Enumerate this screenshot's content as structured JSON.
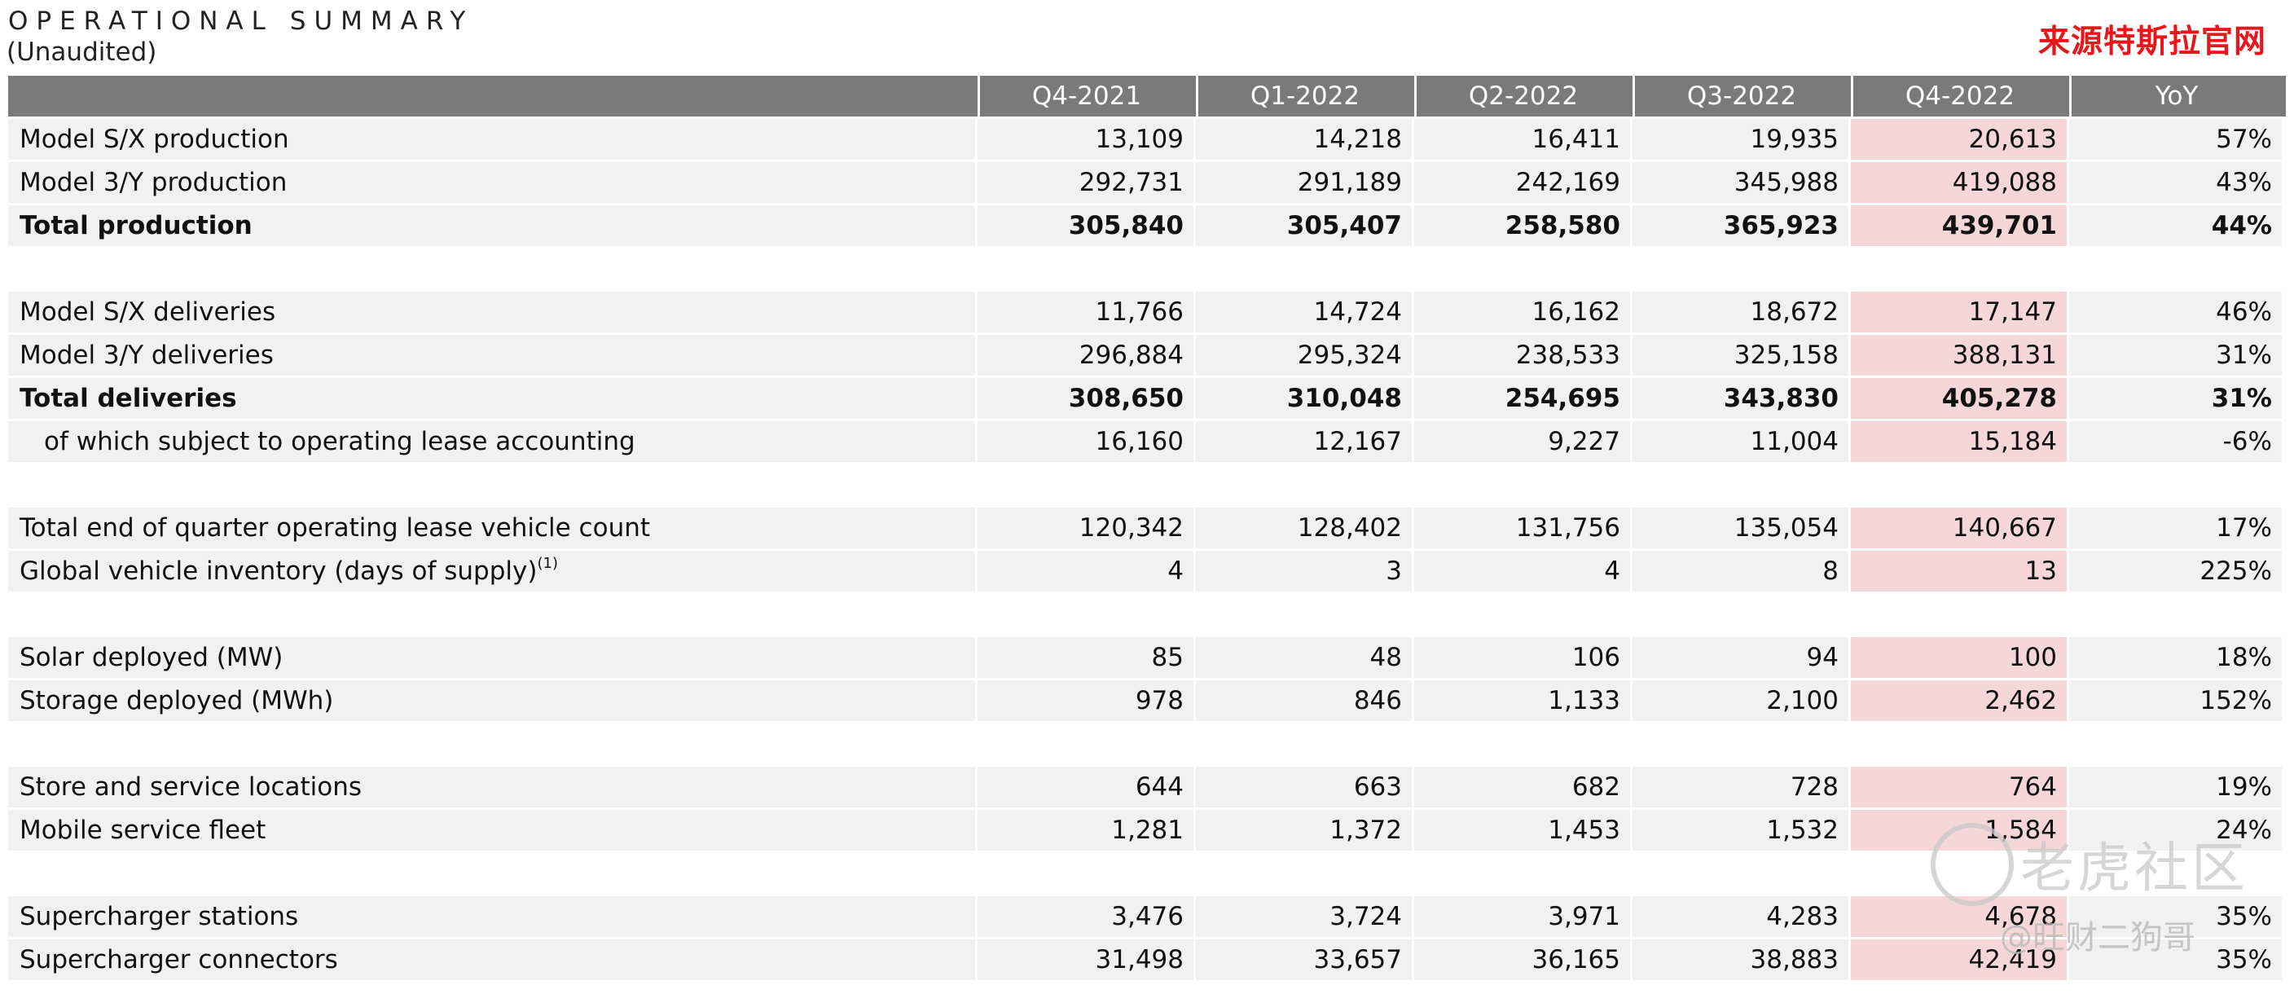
{
  "header": {
    "title": "OPERATIONAL SUMMARY",
    "subtitle": "(Unaudited)",
    "source_tag": "来源特斯拉官网"
  },
  "columns": [
    "",
    "Q4-2021",
    "Q1-2022",
    "Q2-2022",
    "Q3-2022",
    "Q4-2022",
    "YoY"
  ],
  "groups": [
    {
      "rows": [
        {
          "label": "Model S/X production",
          "values": [
            "13,109",
            "14,218",
            "16,411",
            "19,935",
            "20,613",
            "57%"
          ]
        },
        {
          "label": "Model 3/Y production",
          "values": [
            "292,731",
            "291,189",
            "242,169",
            "345,988",
            "419,088",
            "43%"
          ]
        },
        {
          "label": "Total production",
          "bold": true,
          "values": [
            "305,840",
            "305,407",
            "258,580",
            "365,923",
            "439,701",
            "44%"
          ]
        }
      ]
    },
    {
      "rows": [
        {
          "label": "Model S/X deliveries",
          "values": [
            "11,766",
            "14,724",
            "16,162",
            "18,672",
            "17,147",
            "46%"
          ]
        },
        {
          "label": "Model 3/Y deliveries",
          "values": [
            "296,884",
            "295,324",
            "238,533",
            "325,158",
            "388,131",
            "31%"
          ]
        },
        {
          "label": "Total deliveries",
          "bold": true,
          "values": [
            "308,650",
            "310,048",
            "254,695",
            "343,830",
            "405,278",
            "31%"
          ]
        },
        {
          "label": "of which subject to operating lease accounting",
          "indent": true,
          "values": [
            "16,160",
            "12,167",
            "9,227",
            "11,004",
            "15,184",
            "-6%"
          ]
        }
      ]
    },
    {
      "rows": [
        {
          "label": "Total end of quarter operating lease vehicle count",
          "values": [
            "120,342",
            "128,402",
            "131,756",
            "135,054",
            "140,667",
            "17%"
          ]
        },
        {
          "label": "Global vehicle inventory (days of supply)",
          "footnote": "(1)",
          "values": [
            "4",
            "3",
            "4",
            "8",
            "13",
            "225%"
          ]
        }
      ]
    },
    {
      "rows": [
        {
          "label": "Solar deployed (MW)",
          "values": [
            "85",
            "48",
            "106",
            "94",
            "100",
            "18%"
          ]
        },
        {
          "label": "Storage deployed (MWh)",
          "values": [
            "978",
            "846",
            "1,133",
            "2,100",
            "2,462",
            "152%"
          ]
        }
      ]
    },
    {
      "rows": [
        {
          "label": "Store and service locations",
          "values": [
            "644",
            "663",
            "682",
            "728",
            "764",
            "19%"
          ]
        },
        {
          "label": "Mobile service fleet",
          "values": [
            "1,281",
            "1,372",
            "1,453",
            "1,532",
            "1,584",
            "24%"
          ]
        }
      ]
    },
    {
      "rows": [
        {
          "label": "Supercharger stations",
          "values": [
            "3,476",
            "3,724",
            "3,971",
            "4,283",
            "4,678",
            "35%"
          ]
        },
        {
          "label": "Supercharger connectors",
          "values": [
            "31,498",
            "33,657",
            "36,165",
            "38,883",
            "42,419",
            "35%"
          ]
        }
      ]
    }
  ],
  "highlight_color": "#f6d7d8",
  "header_color": "#7a7a7a",
  "watermark": {
    "text": "老虎社区",
    "handle": "@旺财二狗哥"
  }
}
